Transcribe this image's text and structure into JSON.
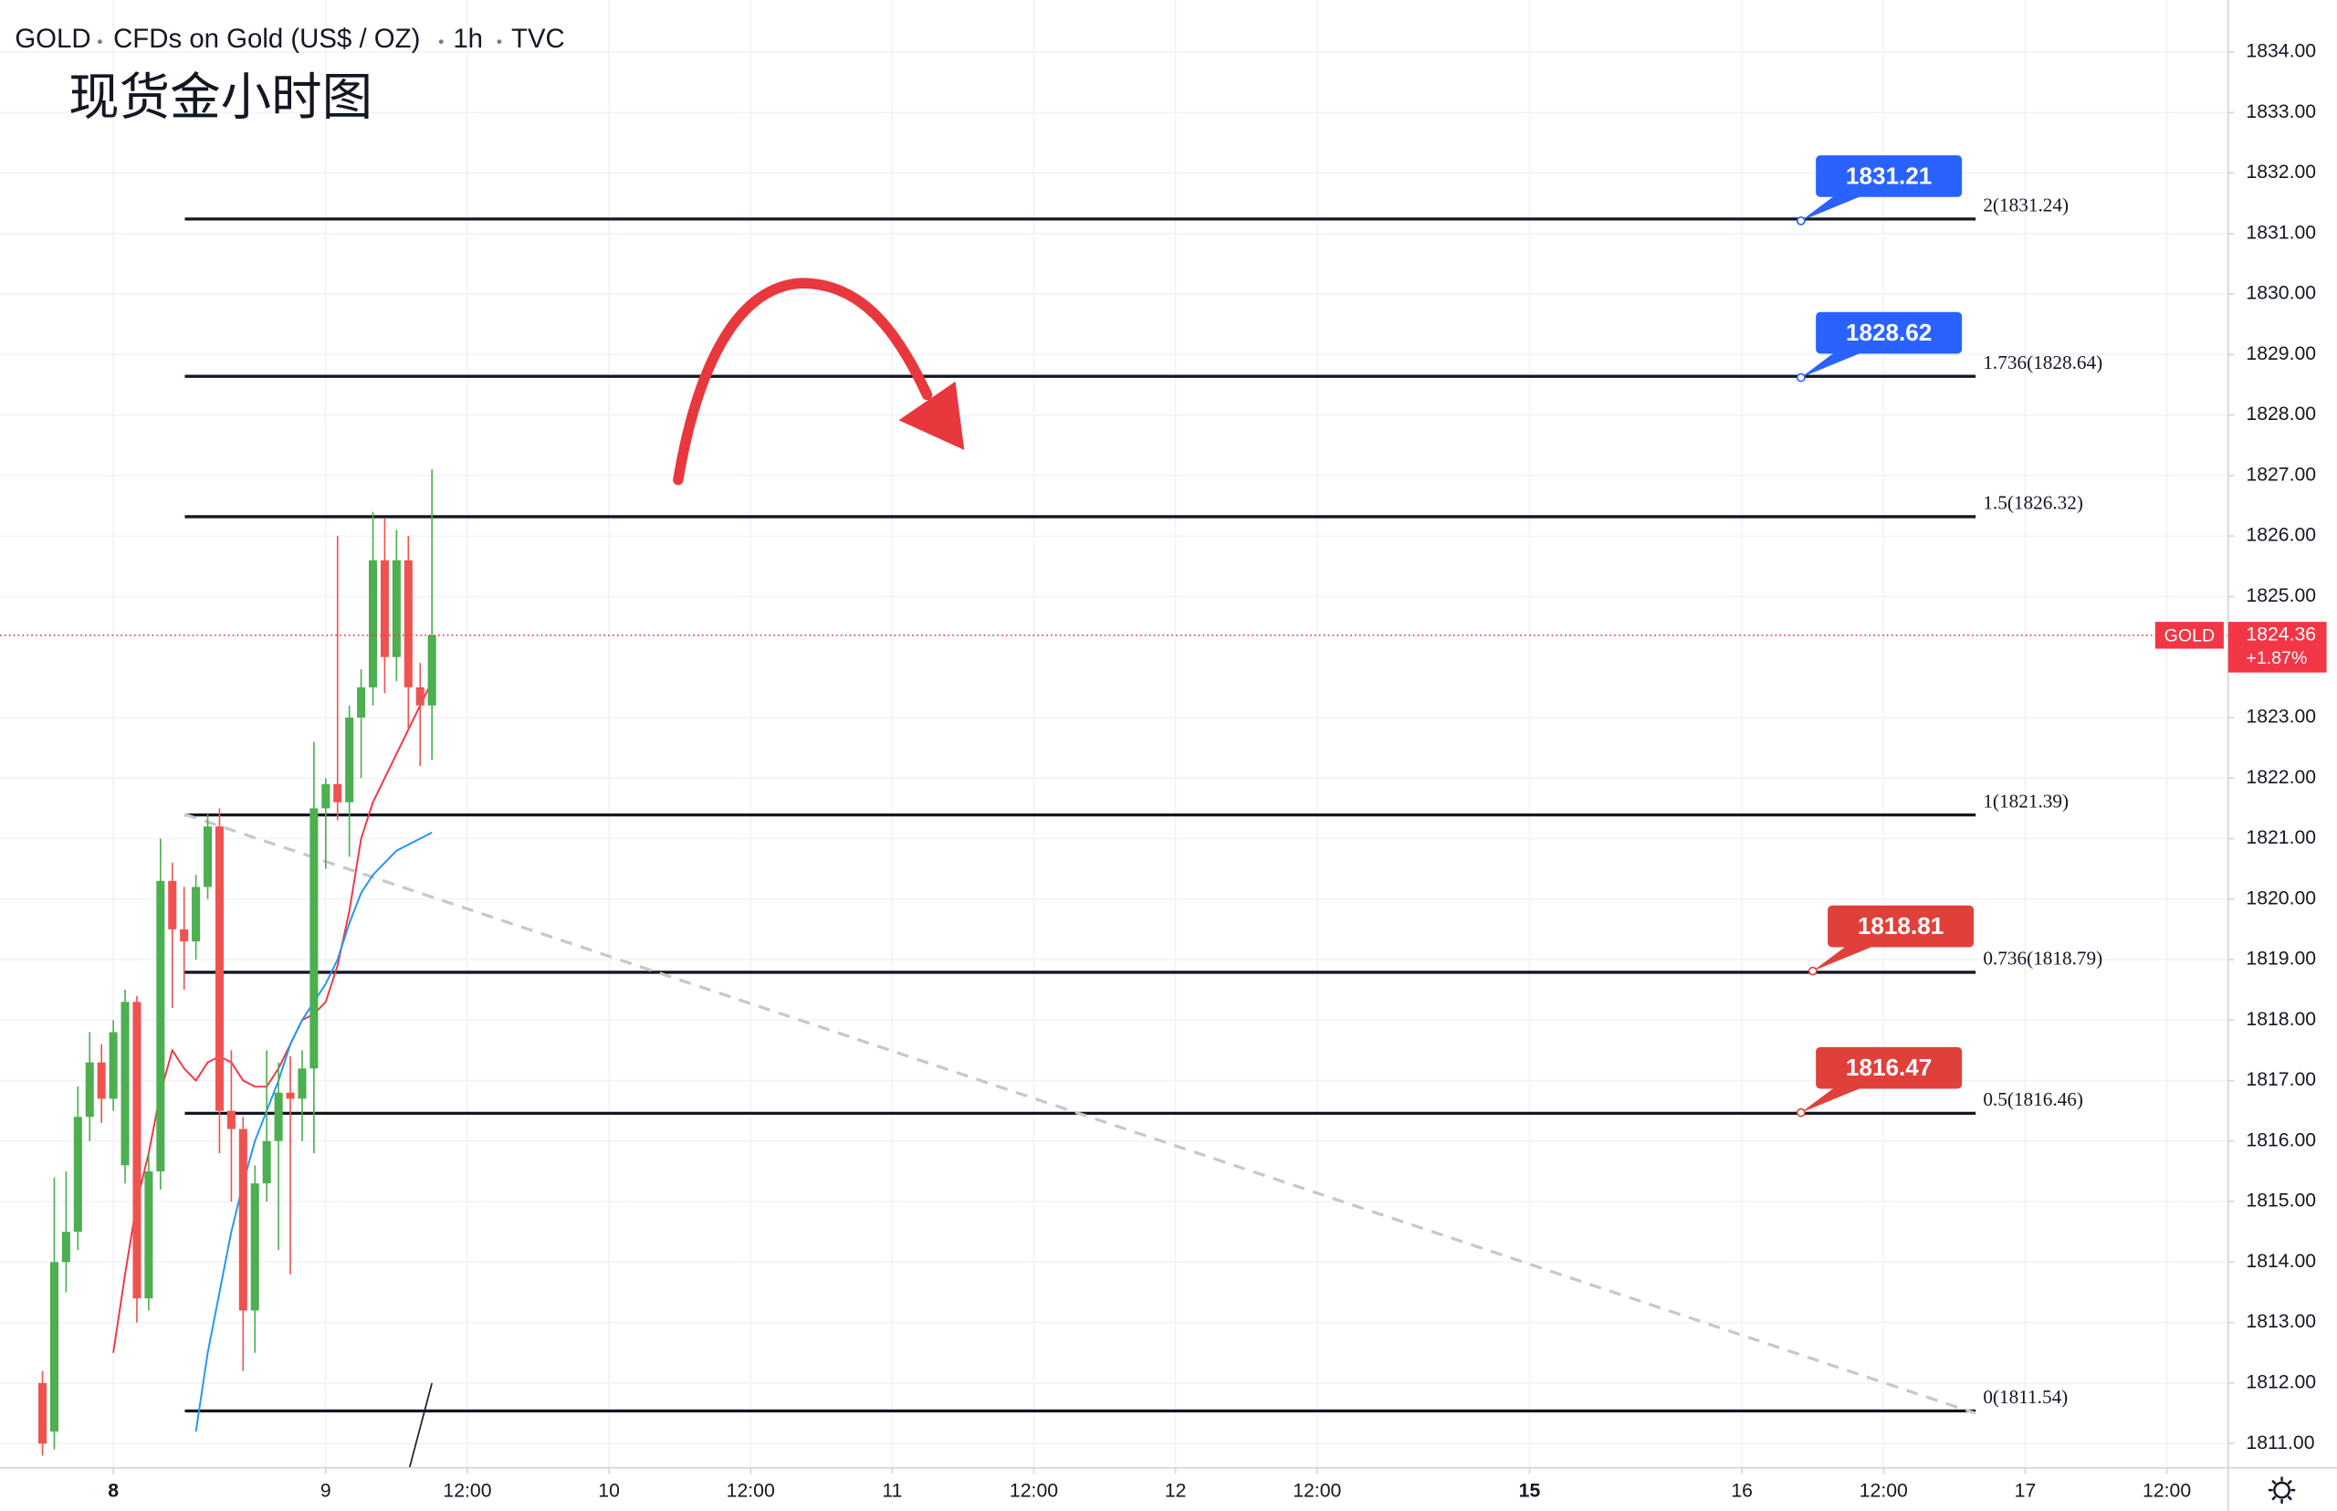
{
  "chart_data": {
    "type": "candlestick",
    "symbol": "GOLD",
    "description": "CFDs on Gold (US$ / OZ)",
    "interval": "1h",
    "source": "TVC",
    "title": "现货金小时图",
    "up_color": "#4caf50",
    "down_color": "#ef5350",
    "grid": true,
    "xlim": [
      -9.6,
      179.2
    ],
    "ylim": [
      1810.6,
      1834.86
    ],
    "xticks": [
      {
        "value": 0,
        "label": "8",
        "bold": true
      },
      {
        "value": 18,
        "label": "9"
      },
      {
        "value": 30,
        "label": "12:00"
      },
      {
        "value": 42,
        "label": "10"
      },
      {
        "value": 54,
        "label": "12:00"
      },
      {
        "value": 66,
        "label": "11"
      },
      {
        "value": 78,
        "label": "12:00"
      },
      {
        "value": 90,
        "label": "12"
      },
      {
        "value": 102,
        "label": "12:00"
      },
      {
        "value": 120,
        "label": "15",
        "bold": true
      },
      {
        "value": 138,
        "label": "16"
      },
      {
        "value": 150,
        "label": "12:00"
      },
      {
        "value": 162,
        "label": "17"
      },
      {
        "value": 174,
        "label": "12:00"
      }
    ],
    "yticks": [
      {
        "value": 1811,
        "label": "1811.00"
      },
      {
        "value": 1812,
        "label": "1812.00"
      },
      {
        "value": 1813,
        "label": "1813.00"
      },
      {
        "value": 1814,
        "label": "1814.00"
      },
      {
        "value": 1815,
        "label": "1815.00"
      },
      {
        "value": 1816,
        "label": "1816.00"
      },
      {
        "value": 1817,
        "label": "1817.00"
      },
      {
        "value": 1818,
        "label": "1818.00"
      },
      {
        "value": 1819,
        "label": "1819.00"
      },
      {
        "value": 1820,
        "label": "1820.00"
      },
      {
        "value": 1821,
        "label": "1821.00"
      },
      {
        "value": 1822,
        "label": "1822.00"
      },
      {
        "value": 1823,
        "label": "1823.00"
      },
      {
        "value": 1825,
        "label": "1825.00"
      },
      {
        "value": 1826,
        "label": "1826.00"
      },
      {
        "value": 1827,
        "label": "1827.00"
      },
      {
        "value": 1828,
        "label": "1828.00"
      },
      {
        "value": 1829,
        "label": "1829.00"
      },
      {
        "value": 1830,
        "label": "1830.00"
      },
      {
        "value": 1831,
        "label": "1831.00"
      },
      {
        "value": 1832,
        "label": "1832.00"
      },
      {
        "value": 1833,
        "label": "1833.00"
      },
      {
        "value": 1834,
        "label": "1834.00"
      }
    ],
    "candles": [
      {
        "x": -6,
        "open": 1812.0,
        "high": 1812.2,
        "low": 1810.8,
        "close": 1811.0
      },
      {
        "x": -5,
        "open": 1811.2,
        "high": 1815.4,
        "low": 1810.9,
        "close": 1814.0
      },
      {
        "x": -4,
        "open": 1814.0,
        "high": 1815.5,
        "low": 1813.5,
        "close": 1814.5
      },
      {
        "x": -3,
        "open": 1814.5,
        "high": 1816.9,
        "low": 1814.2,
        "close": 1816.4
      },
      {
        "x": -2,
        "open": 1816.4,
        "high": 1817.8,
        "low": 1816.0,
        "close": 1817.3
      },
      {
        "x": -1,
        "open": 1817.3,
        "high": 1817.6,
        "low": 1816.3,
        "close": 1816.7
      },
      {
        "x": 0,
        "open": 1816.7,
        "high": 1818.0,
        "low": 1816.5,
        "close": 1817.8
      },
      {
        "x": 1,
        "open": 1815.6,
        "high": 1818.5,
        "low": 1815.3,
        "close": 1818.3
      },
      {
        "x": 2,
        "open": 1818.3,
        "high": 1818.4,
        "low": 1813.0,
        "close": 1813.4
      },
      {
        "x": 3,
        "open": 1813.4,
        "high": 1815.8,
        "low": 1813.2,
        "close": 1815.5
      },
      {
        "x": 4,
        "open": 1815.5,
        "high": 1821.0,
        "low": 1815.2,
        "close": 1820.3
      },
      {
        "x": 5,
        "open": 1820.3,
        "high": 1820.6,
        "low": 1818.2,
        "close": 1819.5
      },
      {
        "x": 6,
        "open": 1819.5,
        "high": 1820.2,
        "low": 1818.5,
        "close": 1819.3
      },
      {
        "x": 7,
        "open": 1819.3,
        "high": 1820.4,
        "low": 1819.0,
        "close": 1820.2
      },
      {
        "x": 8,
        "open": 1820.2,
        "high": 1821.4,
        "low": 1820.0,
        "close": 1821.2
      },
      {
        "x": 9,
        "open": 1821.2,
        "high": 1821.5,
        "low": 1815.8,
        "close": 1816.5
      },
      {
        "x": 10,
        "open": 1816.5,
        "high": 1817.5,
        "low": 1815.0,
        "close": 1816.2
      },
      {
        "x": 11,
        "open": 1816.2,
        "high": 1816.4,
        "low": 1812.2,
        "close": 1813.2
      },
      {
        "x": 12,
        "open": 1813.2,
        "high": 1815.6,
        "low": 1812.5,
        "close": 1815.3
      },
      {
        "x": 13,
        "open": 1815.3,
        "high": 1817.5,
        "low": 1815.0,
        "close": 1816.0
      },
      {
        "x": 14,
        "open": 1816.0,
        "high": 1817.3,
        "low": 1814.2,
        "close": 1816.8
      },
      {
        "x": 15,
        "open": 1816.8,
        "high": 1817.4,
        "low": 1813.8,
        "close": 1816.7
      },
      {
        "x": 16,
        "open": 1816.7,
        "high": 1817.5,
        "low": 1816.0,
        "close": 1817.2
      },
      {
        "x": 17,
        "open": 1817.2,
        "high": 1822.6,
        "low": 1815.8,
        "close": 1821.5
      },
      {
        "x": 18,
        "open": 1821.5,
        "high": 1822.0,
        "low": 1820.5,
        "close": 1821.9
      },
      {
        "x": 19,
        "open": 1821.9,
        "high": 1826.0,
        "low": 1821.3,
        "close": 1821.6
      },
      {
        "x": 20,
        "open": 1821.6,
        "high": 1823.2,
        "low": 1820.7,
        "close": 1823.0
      },
      {
        "x": 21,
        "open": 1823.0,
        "high": 1823.8,
        "low": 1822.0,
        "close": 1823.5
      },
      {
        "x": 22,
        "open": 1823.5,
        "high": 1826.4,
        "low": 1823.2,
        "close": 1825.6
      },
      {
        "x": 23,
        "open": 1825.6,
        "high": 1826.3,
        "low": 1823.4,
        "close": 1824.0
      },
      {
        "x": 24,
        "open": 1824.0,
        "high": 1826.1,
        "low": 1823.6,
        "close": 1825.6
      },
      {
        "x": 25,
        "open": 1825.6,
        "high": 1826.0,
        "low": 1822.8,
        "close": 1823.5
      },
      {
        "x": 26,
        "open": 1823.5,
        "high": 1823.9,
        "low": 1822.2,
        "close": 1823.2
      },
      {
        "x": 27,
        "open": 1823.2,
        "high": 1827.1,
        "low": 1822.3,
        "close": 1824.36
      }
    ],
    "moving_averages": [
      {
        "color": "#f23645",
        "values": [
          null,
          null,
          null,
          null,
          null,
          null,
          1812.5,
          1813.8,
          1815.0,
          1815.8,
          1816.8,
          1817.5,
          1817.2,
          1817.0,
          1817.3,
          1817.4,
          1817.3,
          1817.0,
          1816.9,
          1816.9,
          1817.2,
          1817.6,
          1818.0,
          1818.1,
          1818.3,
          1818.9,
          1819.8,
          1821.0,
          1821.6,
          1822.0,
          1822.4,
          1822.8,
          1823.2,
          1823.6
        ]
      },
      {
        "color": "#2196f3",
        "values": [
          null,
          null,
          null,
          null,
          null,
          null,
          null,
          null,
          null,
          null,
          null,
          null,
          null,
          1811.2,
          1812.5,
          1813.5,
          1814.5,
          1815.3,
          1816.0,
          1816.5,
          1817.0,
          1817.6,
          1818.0,
          1818.3,
          1818.6,
          1819.0,
          1819.6,
          1820.1,
          1820.4,
          1820.6,
          1820.8,
          1820.9,
          1821.0,
          1821.1
        ]
      }
    ],
    "fib_levels": [
      {
        "value": 1831.24,
        "label": "2(1831.24)"
      },
      {
        "value": 1828.64,
        "label": "1.736(1828.64)"
      },
      {
        "value": 1826.32,
        "label": "1.5(1826.32)"
      },
      {
        "value": 1821.39,
        "label": "1(1821.39)"
      },
      {
        "value": 1818.79,
        "label": "0.736(1818.79)"
      },
      {
        "value": 1816.46,
        "label": "0.5(1816.46)"
      },
      {
        "value": 1811.54,
        "label": "0(1811.54)"
      }
    ],
    "fib_x": [
      6.06,
      157.8
    ],
    "callouts": [
      {
        "x": 143,
        "value": 1831.21,
        "color": "#2962ff"
      },
      {
        "x": 143,
        "value": 1828.62,
        "color": "#2962ff"
      },
      {
        "x": 144,
        "value": 1818.81,
        "color": "#e0403a"
      },
      {
        "x": 143,
        "value": 1816.47,
        "color": "#e0403a"
      }
    ],
    "trend_lines": [
      {
        "x": [
          6.06,
          157.8
        ],
        "y": [
          1821.4,
          1811.5
        ],
        "color": "#c8c8c8",
        "dashed": true
      },
      {
        "x": [
          25.1,
          27
        ],
        "y": [
          1810.6,
          1812.0
        ],
        "color": "#131722",
        "dashed": false
      }
    ],
    "last_price": 1824.36,
    "change": "+1.87%",
    "price_color": "#f23645"
  }
}
